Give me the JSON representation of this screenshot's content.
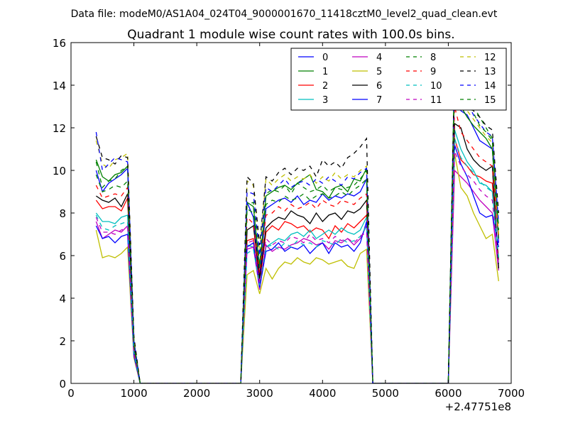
{
  "chart_data": {
    "type": "line",
    "suptitle": "Data file: modeM0/AS1A04_024T04_9000001670_11418cztM0_level2_quad_clean.evt",
    "title": "Quadrant 1 module wise count rates with 100.0s bins.",
    "xlabel": "",
    "ylabel": "",
    "x_offset_label": "+2.47751e8",
    "xlim": [
      0,
      7000
    ],
    "ylim": [
      0,
      16
    ],
    "xticks": [
      0,
      1000,
      2000,
      3000,
      4000,
      5000,
      6000,
      7000
    ],
    "xtick_labels": [
      "0",
      "1000",
      "2000",
      "3000",
      "4000",
      "5000",
      "6000",
      "7000"
    ],
    "yticks": [
      0,
      2,
      4,
      6,
      8,
      10,
      12,
      14,
      16
    ],
    "ytick_labels": [
      "0",
      "2",
      "4",
      "6",
      "8",
      "10",
      "12",
      "14",
      "16"
    ],
    "grid": false,
    "legend_position": "top-right",
    "x": [
      400,
      500,
      600,
      700,
      800,
      900,
      1000,
      1100,
      1200,
      1300,
      1400,
      1500,
      1600,
      1700,
      1800,
      1900,
      2000,
      2100,
      2200,
      2300,
      2400,
      2500,
      2600,
      2700,
      2800,
      2900,
      3000,
      3100,
      3200,
      3300,
      3400,
      3500,
      3600,
      3700,
      3800,
      3900,
      4000,
      4100,
      4200,
      4300,
      4400,
      4500,
      4600,
      4700,
      4800,
      4900,
      5000,
      5100,
      5200,
      5300,
      5400,
      5500,
      5600,
      5700,
      5800,
      5900,
      6000,
      6100,
      6200,
      6300,
      6400,
      6500,
      6600,
      6700,
      6800
    ],
    "series": [
      {
        "name": "0",
        "color": "#0000ff",
        "dash": "solid",
        "values": [
          10.0,
          9.0,
          9.4,
          9.6,
          9.8,
          10.1,
          1.8,
          0,
          0,
          0,
          0,
          0,
          0,
          0,
          0,
          0,
          0,
          0,
          0,
          0,
          0,
          0,
          0,
          0,
          8.5,
          7.8,
          5.0,
          8.2,
          8.4,
          8.6,
          8.7,
          8.5,
          8.8,
          8.4,
          8.6,
          8.5,
          8.9,
          8.6,
          8.8,
          8.7,
          8.9,
          8.8,
          9.0,
          9.6,
          0,
          0,
          0,
          0,
          0,
          0,
          0,
          0,
          0,
          0,
          0,
          0,
          0,
          14.0,
          12.8,
          12.6,
          12.0,
          11.4,
          11.2,
          11.0,
          6.6
        ]
      },
      {
        "name": "1",
        "color": "#008000",
        "dash": "solid",
        "values": [
          10.5,
          9.7,
          9.5,
          9.8,
          9.9,
          10.2,
          2.0,
          0,
          0,
          0,
          0,
          0,
          0,
          0,
          0,
          0,
          0,
          0,
          0,
          0,
          0,
          0,
          0,
          0,
          8.5,
          8.3,
          5.4,
          8.8,
          9.0,
          9.2,
          9.3,
          9.1,
          9.4,
          9.6,
          9.8,
          9.1,
          9.0,
          8.7,
          9.2,
          9.3,
          9.0,
          9.6,
          9.5,
          10.1,
          0,
          0,
          0,
          0,
          0,
          0,
          0,
          0,
          0,
          0,
          0,
          0,
          0,
          15.1,
          13.0,
          12.5,
          12.1,
          11.8,
          11.5,
          11.0,
          6.8
        ]
      },
      {
        "name": "2",
        "color": "#ff0000",
        "dash": "solid",
        "values": [
          8.6,
          8.2,
          8.3,
          8.3,
          8.1,
          8.7,
          1.6,
          0,
          0,
          0,
          0,
          0,
          0,
          0,
          0,
          0,
          0,
          0,
          0,
          0,
          0,
          0,
          0,
          0,
          6.7,
          6.8,
          4.7,
          7.1,
          7.4,
          7.2,
          7.6,
          7.5,
          7.3,
          7.4,
          7.1,
          7.3,
          7.2,
          6.8,
          7.4,
          7.1,
          7.5,
          7.3,
          7.6,
          7.9,
          0,
          0,
          0,
          0,
          0,
          0,
          0,
          0,
          0,
          0,
          0,
          0,
          0,
          11.5,
          10.5,
          10.2,
          9.8,
          9.7,
          9.5,
          9.4,
          5.8
        ]
      },
      {
        "name": "3",
        "color": "#00bfbf",
        "dash": "solid",
        "values": [
          8.0,
          7.6,
          7.6,
          7.5,
          7.8,
          7.9,
          1.6,
          0,
          0,
          0,
          0,
          0,
          0,
          0,
          0,
          0,
          0,
          0,
          0,
          0,
          0,
          0,
          0,
          0,
          6.5,
          6.4,
          4.6,
          6.4,
          6.6,
          6.8,
          6.7,
          7.0,
          7.1,
          6.9,
          7.2,
          6.8,
          7.0,
          7.2,
          7.0,
          7.3,
          7.1,
          7.0,
          7.2,
          7.8,
          0,
          0,
          0,
          0,
          0,
          0,
          0,
          0,
          0,
          0,
          0,
          0,
          0,
          11.9,
          11.0,
          10.4,
          10.0,
          9.4,
          9.3,
          9.0,
          5.6
        ]
      },
      {
        "name": "4",
        "color": "#bf00bf",
        "dash": "solid",
        "values": [
          7.6,
          6.8,
          7.0,
          7.2,
          7.1,
          7.4,
          1.4,
          0,
          0,
          0,
          0,
          0,
          0,
          0,
          0,
          0,
          0,
          0,
          0,
          0,
          0,
          0,
          0,
          0,
          6.3,
          6.4,
          4.4,
          6.5,
          6.2,
          6.4,
          6.3,
          6.5,
          6.6,
          6.8,
          6.7,
          6.5,
          6.6,
          6.3,
          6.7,
          6.6,
          6.8,
          6.5,
          6.8,
          7.4,
          0,
          0,
          0,
          0,
          0,
          0,
          0,
          0,
          0,
          0,
          0,
          0,
          0,
          10.0,
          9.7,
          9.4,
          9.0,
          8.6,
          8.3,
          8.0,
          5.3
        ]
      },
      {
        "name": "5",
        "color": "#bfbf00",
        "dash": "solid",
        "values": [
          7.2,
          5.9,
          6.0,
          5.9,
          6.1,
          6.4,
          1.2,
          0,
          0,
          0,
          0,
          0,
          0,
          0,
          0,
          0,
          0,
          0,
          0,
          0,
          0,
          0,
          0,
          0,
          5.1,
          5.3,
          4.2,
          5.4,
          4.9,
          5.4,
          5.7,
          5.6,
          5.9,
          5.7,
          5.6,
          5.9,
          5.8,
          5.6,
          5.7,
          5.8,
          5.5,
          5.4,
          6.1,
          6.3,
          0,
          0,
          0,
          0,
          0,
          0,
          0,
          0,
          0,
          0,
          0,
          0,
          0,
          10.8,
          9.2,
          8.8,
          8.0,
          7.4,
          6.8,
          7.0,
          4.8
        ]
      },
      {
        "name": "6",
        "color": "#000000",
        "dash": "solid",
        "values": [
          8.8,
          8.6,
          8.5,
          8.7,
          8.3,
          8.9,
          1.7,
          0,
          0,
          0,
          0,
          0,
          0,
          0,
          0,
          0,
          0,
          0,
          0,
          0,
          0,
          0,
          0,
          0,
          7.2,
          7.4,
          4.9,
          7.3,
          7.6,
          7.8,
          7.7,
          8.1,
          7.9,
          7.8,
          7.5,
          8.0,
          7.6,
          7.9,
          8.0,
          7.7,
          8.1,
          8.0,
          8.2,
          8.6,
          0,
          0,
          0,
          0,
          0,
          0,
          0,
          0,
          0,
          0,
          0,
          0,
          0,
          12.2,
          12.0,
          11.0,
          10.5,
          10.2,
          10.0,
          10.2,
          5.4
        ]
      },
      {
        "name": "7",
        "color": "#0000ff",
        "dash": "solid",
        "values": [
          7.4,
          6.8,
          6.9,
          6.6,
          6.9,
          7.0,
          1.3,
          0,
          0,
          0,
          0,
          0,
          0,
          0,
          0,
          0,
          0,
          0,
          0,
          0,
          0,
          0,
          0,
          0,
          6.4,
          6.6,
          4.5,
          6.2,
          6.3,
          6.6,
          6.2,
          6.4,
          6.3,
          6.5,
          6.1,
          6.4,
          6.6,
          6.1,
          6.6,
          6.4,
          6.5,
          6.2,
          6.6,
          7.6,
          0,
          0,
          0,
          0,
          0,
          0,
          0,
          0,
          0,
          0,
          0,
          0,
          0,
          11.2,
          10.3,
          9.7,
          8.8,
          8.0,
          7.8,
          7.9,
          6.4
        ]
      },
      {
        "name": "8",
        "color": "#008000",
        "dash": "dashed",
        "values": [
          10.4,
          9.2,
          9.5,
          9.6,
          10.0,
          10.2,
          1.9,
          0,
          0,
          0,
          0,
          0,
          0,
          0,
          0,
          0,
          0,
          0,
          0,
          0,
          0,
          0,
          0,
          0,
          8.4,
          8.5,
          5.6,
          8.9,
          9.1,
          9.0,
          9.3,
          8.9,
          9.4,
          9.2,
          9.0,
          9.1,
          9.3,
          9.0,
          9.2,
          9.1,
          9.2,
          9.3,
          9.6,
          10.0,
          0,
          0,
          0,
          0,
          0,
          0,
          0,
          0,
          0,
          0,
          0,
          0,
          0,
          14.8,
          14.2,
          13.6,
          13.0,
          12.5,
          12.0,
          11.5,
          7.2
        ]
      },
      {
        "name": "9",
        "color": "#ff0000",
        "dash": "dashed",
        "values": [
          9.3,
          8.7,
          8.8,
          8.9,
          8.8,
          9.2,
          1.7,
          0,
          0,
          0,
          0,
          0,
          0,
          0,
          0,
          0,
          0,
          0,
          0,
          0,
          0,
          0,
          0,
          0,
          7.8,
          7.5,
          5.2,
          7.9,
          8.0,
          8.3,
          8.1,
          8.4,
          8.2,
          8.3,
          8.5,
          8.2,
          8.6,
          8.4,
          8.3,
          8.6,
          8.5,
          8.4,
          8.7,
          8.9,
          0,
          0,
          0,
          0,
          0,
          0,
          0,
          0,
          0,
          0,
          0,
          0,
          0,
          13.0,
          11.8,
          11.4,
          11.0,
          10.6,
          10.4,
          10.2,
          6.9
        ]
      },
      {
        "name": "10",
        "color": "#00bfbf",
        "dash": "dashed",
        "values": [
          7.9,
          7.3,
          7.2,
          7.4,
          7.5,
          7.6,
          1.5,
          0,
          0,
          0,
          0,
          0,
          0,
          0,
          0,
          0,
          0,
          0,
          0,
          0,
          0,
          0,
          0,
          0,
          6.1,
          6.3,
          4.6,
          6.4,
          6.5,
          6.3,
          6.6,
          6.4,
          6.7,
          6.5,
          6.6,
          6.4,
          6.7,
          6.6,
          6.5,
          6.8,
          6.6,
          6.7,
          6.9,
          7.4,
          0,
          0,
          0,
          0,
          0,
          0,
          0,
          0,
          0,
          0,
          0,
          0,
          0,
          11.5,
          10.6,
          10.2,
          9.9,
          9.5,
          9.2,
          9.0,
          5.9
        ]
      },
      {
        "name": "11",
        "color": "#bf00bf",
        "dash": "dashed",
        "values": [
          7.8,
          7.1,
          7.1,
          7.0,
          7.2,
          7.3,
          1.4,
          0,
          0,
          0,
          0,
          0,
          0,
          0,
          0,
          0,
          0,
          0,
          0,
          0,
          0,
          0,
          0,
          0,
          6.6,
          6.7,
          4.7,
          6.8,
          6.5,
          6.7,
          6.6,
          6.9,
          6.8,
          6.6,
          7.0,
          6.7,
          6.8,
          6.6,
          6.9,
          6.7,
          6.8,
          6.6,
          6.9,
          7.1,
          0,
          0,
          0,
          0,
          0,
          0,
          0,
          0,
          0,
          0,
          0,
          0,
          0,
          10.9,
          10.2,
          9.8,
          9.5,
          9.1,
          8.8,
          8.6,
          5.5
        ]
      },
      {
        "name": "12",
        "color": "#bfbf00",
        "dash": "dashed",
        "values": [
          11.4,
          10.3,
          10.1,
          10.5,
          10.6,
          10.8,
          2.1,
          0,
          0,
          0,
          0,
          0,
          0,
          0,
          0,
          0,
          0,
          0,
          0,
          0,
          0,
          0,
          0,
          0,
          9.5,
          9.3,
          6.2,
          9.6,
          9.3,
          9.6,
          9.8,
          9.5,
          9.7,
          9.6,
          9.8,
          9.4,
          9.7,
          9.5,
          9.9,
          9.6,
          9.8,
          9.7,
          10.0,
          10.2,
          0,
          0,
          0,
          0,
          0,
          0,
          0,
          0,
          0,
          0,
          0,
          0,
          0,
          14.0,
          13.4,
          12.8,
          12.4,
          12.0,
          11.6,
          11.3,
          7.0
        ]
      },
      {
        "name": "13",
        "color": "#000000",
        "dash": "dashed",
        "values": [
          11.6,
          10.6,
          10.5,
          10.3,
          10.7,
          10.6,
          2.2,
          0,
          0,
          0,
          0,
          0,
          0,
          0,
          0,
          0,
          0,
          0,
          0,
          0,
          0,
          0,
          0,
          0,
          9.7,
          9.4,
          6.5,
          9.7,
          9.5,
          9.9,
          10.1,
          9.8,
          10.1,
          10.0,
          10.2,
          9.7,
          10.5,
          10.2,
          10.4,
          10.1,
          10.6,
          10.8,
          11.1,
          11.5,
          0,
          0,
          0,
          0,
          0,
          0,
          0,
          0,
          0,
          0,
          0,
          0,
          0,
          15.2,
          14.6,
          13.9,
          12.8,
          12.5,
          12.1,
          11.9,
          8.0
        ]
      },
      {
        "name": "14",
        "color": "#0000ff",
        "dash": "dashed",
        "values": [
          11.8,
          10.0,
          10.3,
          10.6,
          10.5,
          10.4,
          2.0,
          0,
          0,
          0,
          0,
          0,
          0,
          0,
          0,
          0,
          0,
          0,
          0,
          0,
          0,
          0,
          0,
          0,
          9.0,
          8.9,
          6.0,
          9.2,
          9.0,
          9.3,
          9.6,
          9.2,
          9.4,
          9.5,
          9.3,
          9.6,
          9.4,
          9.7,
          9.5,
          9.3,
          9.7,
          9.6,
          9.9,
          10.1,
          0,
          0,
          0,
          0,
          0,
          0,
          0,
          0,
          0,
          0,
          0,
          0,
          0,
          14.6,
          13.8,
          13.2,
          12.6,
          12.2,
          11.8,
          11.6,
          7.5
        ]
      },
      {
        "name": "15",
        "color": "#008000",
        "dash": "dashed",
        "values": [
          9.8,
          9.0,
          9.1,
          9.3,
          9.2,
          9.5,
          1.8,
          0,
          0,
          0,
          0,
          0,
          0,
          0,
          0,
          0,
          0,
          0,
          0,
          0,
          0,
          0,
          0,
          0,
          8.2,
          8.0,
          5.5,
          8.4,
          8.6,
          8.5,
          8.8,
          8.6,
          8.7,
          8.9,
          8.6,
          8.8,
          8.9,
          8.7,
          8.8,
          9.0,
          8.8,
          9.1,
          9.3,
          9.6,
          0,
          0,
          0,
          0,
          0,
          0,
          0,
          0,
          0,
          0,
          0,
          0,
          0,
          14.9,
          14.0,
          13.3,
          12.7,
          12.1,
          11.8,
          11.4,
          7.3
        ]
      }
    ]
  }
}
